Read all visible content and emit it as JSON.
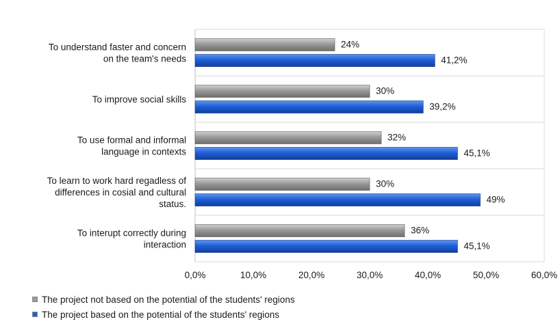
{
  "chart_data": {
    "type": "bar",
    "orientation": "horizontal",
    "categories": [
      "To understand faster and concern on the team's needs",
      "To improve social skills",
      "To use formal and informal language in contexts",
      "To learn to work hard regadless of differences in cosial and cultural status.",
      "To interupt correctly during interaction"
    ],
    "category_label_lines": [
      [
        "To understand faster and concern",
        "on the team's needs"
      ],
      [
        "To improve social skills"
      ],
      [
        "To use formal and informal",
        "language in contexts"
      ],
      [
        "To learn to work hard regadless of",
        "differences in cosial and cultural",
        "status."
      ],
      [
        "To interupt correctly during",
        "interaction"
      ]
    ],
    "series": [
      {
        "name": "The project not based on the potential of the students' regions",
        "values": [
          24,
          30,
          32,
          30,
          36
        ],
        "labels": [
          "24%",
          "30%",
          "32%",
          "30%",
          "36%"
        ],
        "color": "#8c8c8c"
      },
      {
        "name": "The project based on the potential of the students' regions",
        "values": [
          41.2,
          39.2,
          45.1,
          49,
          45.1
        ],
        "labels": [
          "41,2%",
          "39,2%",
          "45,1%",
          "49%",
          "45,1%"
        ],
        "color": "#1f5fd6"
      }
    ],
    "xlim": [
      0,
      60
    ],
    "xticks": [
      0,
      10,
      20,
      30,
      40,
      50,
      60
    ],
    "xtick_labels": [
      "0,0%",
      "10,0%",
      "20,0%",
      "30,0%",
      "40,0%",
      "50,0%",
      "60,0%"
    ],
    "grid": "horizontal bands",
    "legend_position": "bottom-left"
  }
}
